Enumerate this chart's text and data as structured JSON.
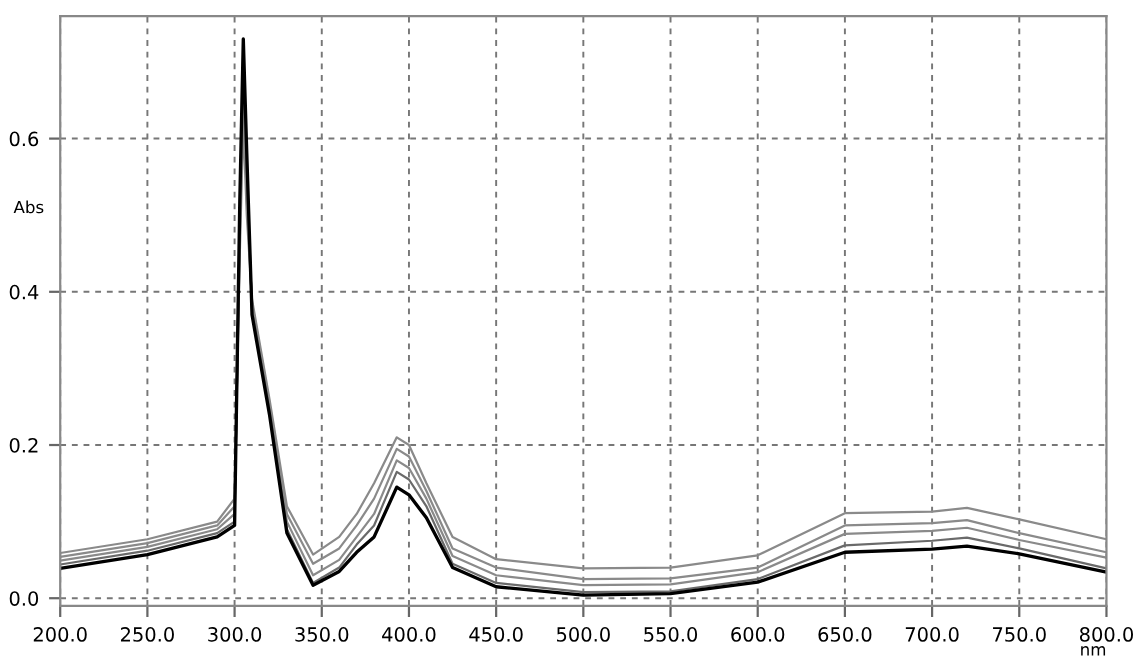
{
  "chart_data": {
    "type": "line",
    "xlabel": "nm",
    "ylabel": "Abs",
    "x": [
      200,
      250,
      290,
      300,
      303,
      305,
      307,
      310,
      320,
      330,
      345,
      360,
      370,
      380,
      393,
      400,
      410,
      425,
      450,
      500,
      550,
      600,
      650,
      700,
      720,
      750,
      800
    ],
    "series": [
      {
        "color": "#8a8a8a",
        "values": [
          0.059,
          0.077,
          0.1,
          0.13,
          0.45,
          0.62,
          0.5,
          0.39,
          0.26,
          0.12,
          0.057,
          0.08,
          0.11,
          0.15,
          0.21,
          0.2,
          0.15,
          0.08,
          0.051,
          0.039,
          0.04,
          0.056,
          0.111,
          0.113,
          0.118,
          0.103,
          0.077
        ]
      },
      {
        "color": "#8a8a8a",
        "values": [
          0.054,
          0.072,
          0.095,
          0.12,
          0.47,
          0.66,
          0.52,
          0.385,
          0.255,
          0.11,
          0.045,
          0.065,
          0.095,
          0.13,
          0.195,
          0.185,
          0.14,
          0.065,
          0.04,
          0.025,
          0.026,
          0.04,
          0.095,
          0.098,
          0.102,
          0.085,
          0.06
        ]
      },
      {
        "color": "#8a8a8a",
        "values": [
          0.049,
          0.067,
          0.09,
          0.11,
          0.49,
          0.69,
          0.54,
          0.38,
          0.25,
          0.1,
          0.03,
          0.05,
          0.08,
          0.11,
          0.18,
          0.17,
          0.13,
          0.055,
          0.03,
          0.017,
          0.018,
          0.034,
          0.084,
          0.088,
          0.092,
          0.076,
          0.053
        ]
      },
      {
        "color": "#6a6a6a",
        "values": [
          0.044,
          0.062,
          0.085,
          0.1,
          0.5,
          0.72,
          0.56,
          0.375,
          0.245,
          0.09,
          0.02,
          0.04,
          0.07,
          0.095,
          0.165,
          0.155,
          0.12,
          0.045,
          0.02,
          0.008,
          0.009,
          0.025,
          0.069,
          0.075,
          0.079,
          0.065,
          0.039
        ]
      },
      {
        "color": "#000000",
        "values": [
          0.039,
          0.057,
          0.08,
          0.095,
          0.52,
          0.73,
          0.58,
          0.37,
          0.24,
          0.085,
          0.017,
          0.035,
          0.06,
          0.08,
          0.145,
          0.135,
          0.105,
          0.04,
          0.015,
          0.004,
          0.006,
          0.021,
          0.06,
          0.064,
          0.068,
          0.058,
          0.034
        ]
      }
    ],
    "xlim": [
      200,
      800
    ],
    "xticks": [
      {
        "value": 200,
        "label": "200.0"
      },
      {
        "value": 250,
        "label": "250.0"
      },
      {
        "value": 300,
        "label": "300.0"
      },
      {
        "value": 350,
        "label": "350.0"
      },
      {
        "value": 400,
        "label": "400.0"
      },
      {
        "value": 450,
        "label": "450.0"
      },
      {
        "value": 500,
        "label": "500.0"
      },
      {
        "value": 550,
        "label": "550.0"
      },
      {
        "value": 600,
        "label": "600.0"
      },
      {
        "value": 650,
        "label": "650.0"
      },
      {
        "value": 700,
        "label": "700.0"
      },
      {
        "value": 750,
        "label": "750.0"
      },
      {
        "value": 800,
        "label": "800.0"
      }
    ],
    "ylim": [
      -0.01,
      0.76
    ],
    "yticks": [
      {
        "value": 0,
        "label": "0.0"
      },
      {
        "value": 0.2,
        "label": "0.2"
      },
      {
        "value": 0.4,
        "label": "0.4"
      },
      {
        "value": 0.6,
        "label": "0.6"
      }
    ],
    "grid": true,
    "line_style": "solid"
  }
}
